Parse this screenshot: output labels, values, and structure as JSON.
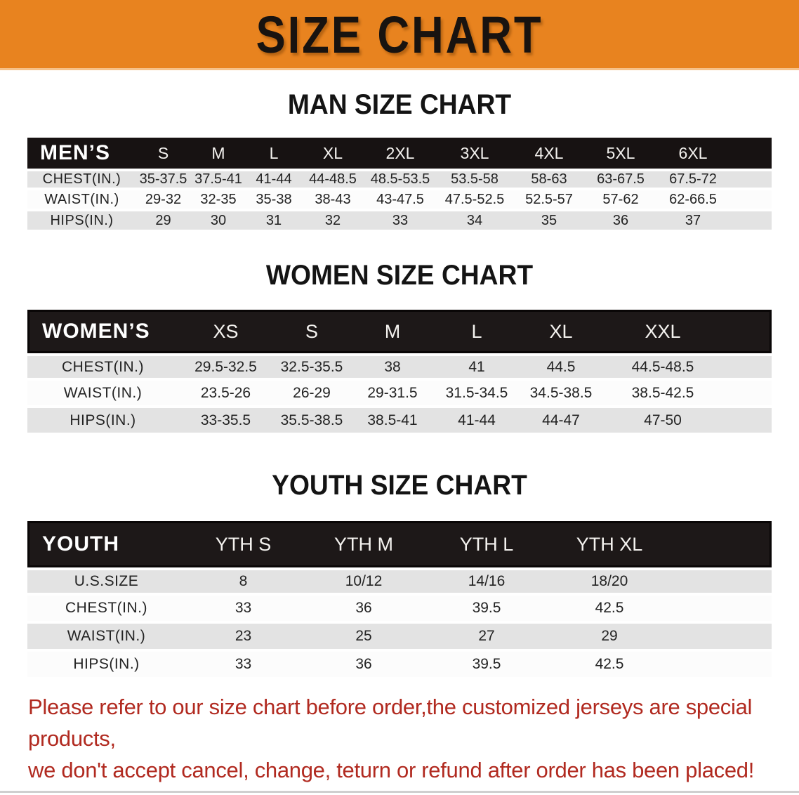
{
  "theme": {
    "banner_bg": "#E8831F",
    "header_bar_bg": "#171212",
    "stripe_gray": "#e3e3e3",
    "disclaimer_color": "#b12a20"
  },
  "banner": {
    "title": "SIZE CHART"
  },
  "sections": [
    {
      "heading": "MAN SIZE CHART",
      "table": {
        "header_label": "MEN’S",
        "columns": [
          "S",
          "M",
          "L",
          "XL",
          "2XL",
          "3XL",
          "4XL",
          "5XL",
          "6XL"
        ],
        "rows": [
          {
            "label": "CHEST(IN.)",
            "values": [
              "35-37.5",
              "37.5-41",
              "41-44",
              "44-48.5",
              "48.5-53.5",
              "53.5-58",
              "58-63",
              "63-67.5",
              "67.5-72"
            ]
          },
          {
            "label": "WAIST(IN.)",
            "values": [
              "29-32",
              "32-35",
              "35-38",
              "38-43",
              "43-47.5",
              "47.5-52.5",
              "52.5-57",
              "57-62",
              "62-66.5"
            ]
          },
          {
            "label": "HIPS(IN.)",
            "values": [
              "29",
              "30",
              "31",
              "32",
              "33",
              "34",
              "35",
              "36",
              "37"
            ]
          }
        ]
      }
    },
    {
      "heading": "WOMEN SIZE CHART",
      "table": {
        "header_label": "WOMEN’S",
        "columns": [
          "XS",
          "S",
          "M",
          "L",
          "XL",
          "XXL"
        ],
        "rows": [
          {
            "label": "CHEST(IN.)",
            "values": [
              "29.5-32.5",
              "32.5-35.5",
              "38",
              "41",
              "44.5",
              "44.5-48.5"
            ]
          },
          {
            "label": "WAIST(IN.)",
            "values": [
              "23.5-26",
              "26-29",
              "29-31.5",
              "31.5-34.5",
              "34.5-38.5",
              "38.5-42.5"
            ]
          },
          {
            "label": "HIPS(IN.)",
            "values": [
              "33-35.5",
              "35.5-38.5",
              "38.5-41",
              "41-44",
              "44-47",
              "47-50"
            ]
          }
        ]
      }
    },
    {
      "heading": "YOUTH SIZE CHART",
      "table": {
        "header_label": "YOUTH",
        "columns": [
          "YTH S",
          "YTH M",
          "YTH L",
          "YTH XL"
        ],
        "rows": [
          {
            "label": "U.S.SIZE",
            "values": [
              "8",
              "10/12",
              "14/16",
              "18/20"
            ]
          },
          {
            "label": "CHEST(IN.)",
            "values": [
              "33",
              "36",
              "39.5",
              "42.5"
            ]
          },
          {
            "label": "WAIST(IN.)",
            "values": [
              "23",
              "25",
              "27",
              "29"
            ]
          },
          {
            "label": "HIPS(IN.)",
            "values": [
              "33",
              "36",
              "39.5",
              "42.5"
            ]
          }
        ]
      }
    }
  ],
  "disclaimer": {
    "line1": "Please refer to our size chart before order,the customized jerseys are special products,",
    "line2": "we don't accept cancel, change, teturn or refund after order has been placed!"
  }
}
